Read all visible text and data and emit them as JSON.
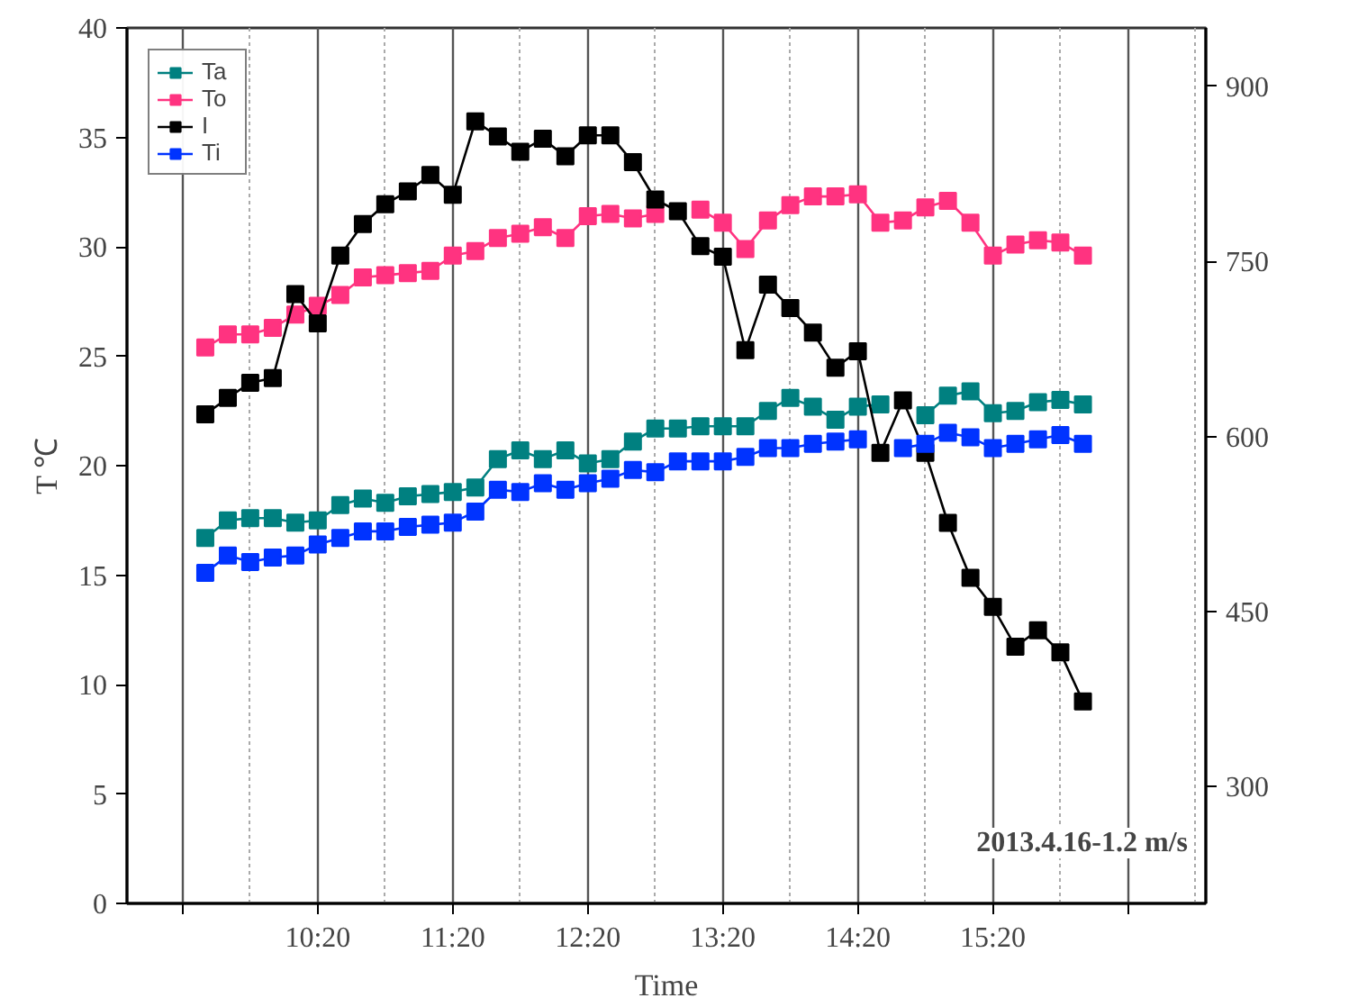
{
  "chart_data": {
    "type": "line",
    "xlabel": "Time",
    "ylabel": "T ℃",
    "x": [
      9.5,
      9.667,
      9.833,
      10.0,
      10.167,
      10.333,
      10.5,
      10.667,
      10.833,
      11.0,
      11.167,
      11.333,
      11.5,
      11.667,
      11.833,
      12.0,
      12.167,
      12.333,
      12.5,
      12.667,
      12.833,
      13.0,
      13.167,
      13.333,
      13.5,
      13.667,
      13.833,
      14.0,
      14.167,
      14.333,
      14.5,
      14.667,
      14.833,
      15.0,
      15.167,
      15.333,
      15.5,
      15.667,
      15.833,
      16.0
    ],
    "series": [
      {
        "name": "Ta",
        "color": "#008080",
        "values": [
          16.7,
          17.5,
          17.6,
          17.6,
          17.4,
          17.5,
          18.2,
          18.5,
          18.3,
          18.6,
          18.7,
          18.8,
          19.0,
          20.3,
          20.7,
          20.3,
          20.7,
          20.1,
          20.3,
          21.1,
          21.7,
          21.7,
          21.8,
          21.8,
          21.8,
          22.5,
          23.1,
          22.7,
          22.1,
          22.7,
          22.8,
          null,
          22.3,
          23.2,
          23.4,
          22.4,
          22.5,
          22.9,
          23.0,
          22.8
        ]
      },
      {
        "name": "To",
        "color": "#ff3380",
        "values": [
          25.4,
          26.0,
          26.0,
          26.3,
          26.9,
          27.3,
          27.8,
          28.6,
          28.7,
          28.8,
          28.9,
          29.6,
          29.8,
          30.4,
          30.6,
          30.9,
          30.4,
          31.4,
          31.5,
          31.3,
          31.5,
          null,
          31.7,
          31.1,
          29.9,
          31.2,
          31.9,
          32.3,
          32.3,
          32.4,
          31.1,
          31.2,
          31.8,
          32.1,
          31.1,
          29.6,
          30.1,
          30.3,
          30.2,
          29.6
        ]
      },
      {
        "name": "I",
        "color": "#000000",
        "axis": "y2",
        "values": [
          619,
          633,
          646,
          650,
          722,
          697,
          755,
          782,
          799,
          810,
          824,
          807,
          870,
          857,
          844,
          855,
          840,
          858,
          858,
          835,
          803,
          793,
          763,
          754,
          674,
          730,
          710,
          689,
          659,
          673,
          586,
          631,
          586,
          526,
          479,
          454,
          420,
          434,
          415,
          373
        ]
      },
      {
        "name": "Ti",
        "color": "#0033ff",
        "values": [
          15.1,
          15.9,
          15.6,
          15.8,
          15.9,
          16.4,
          16.7,
          17.0,
          17.0,
          17.2,
          17.3,
          17.4,
          17.9,
          18.9,
          18.8,
          19.2,
          18.9,
          19.2,
          19.4,
          19.8,
          19.7,
          20.2,
          20.2,
          20.2,
          20.4,
          20.8,
          20.8,
          21.0,
          21.1,
          21.2,
          null,
          20.8,
          21.0,
          21.5,
          21.3,
          20.8,
          21.0,
          21.2,
          21.4,
          21.0
        ]
      }
    ],
    "xlim": [
      8.92,
      16.91
    ],
    "xticks": [
      {
        "value": 9.333,
        "label": null
      },
      {
        "value": 10.333,
        "label": "10:20"
      },
      {
        "value": 11.333,
        "label": "11:20"
      },
      {
        "value": 12.333,
        "label": "12:20"
      },
      {
        "value": 13.333,
        "label": "13:20"
      },
      {
        "value": 14.333,
        "label": "14:20"
      },
      {
        "value": 15.333,
        "label": "15:20"
      },
      {
        "value": 16.333,
        "label": null
      }
    ],
    "ylim": [
      0,
      40
    ],
    "yticks": [
      0,
      5,
      10,
      15,
      20,
      25,
      30,
      35,
      40
    ],
    "y2lim": [
      200,
      950
    ],
    "y2ticks": [
      300,
      450,
      600,
      750,
      900
    ],
    "grid": "x",
    "legend": "top left",
    "marker": "square",
    "line_style": "solid",
    "annotations": [
      "2013.4.16-1.2 m/s"
    ]
  }
}
